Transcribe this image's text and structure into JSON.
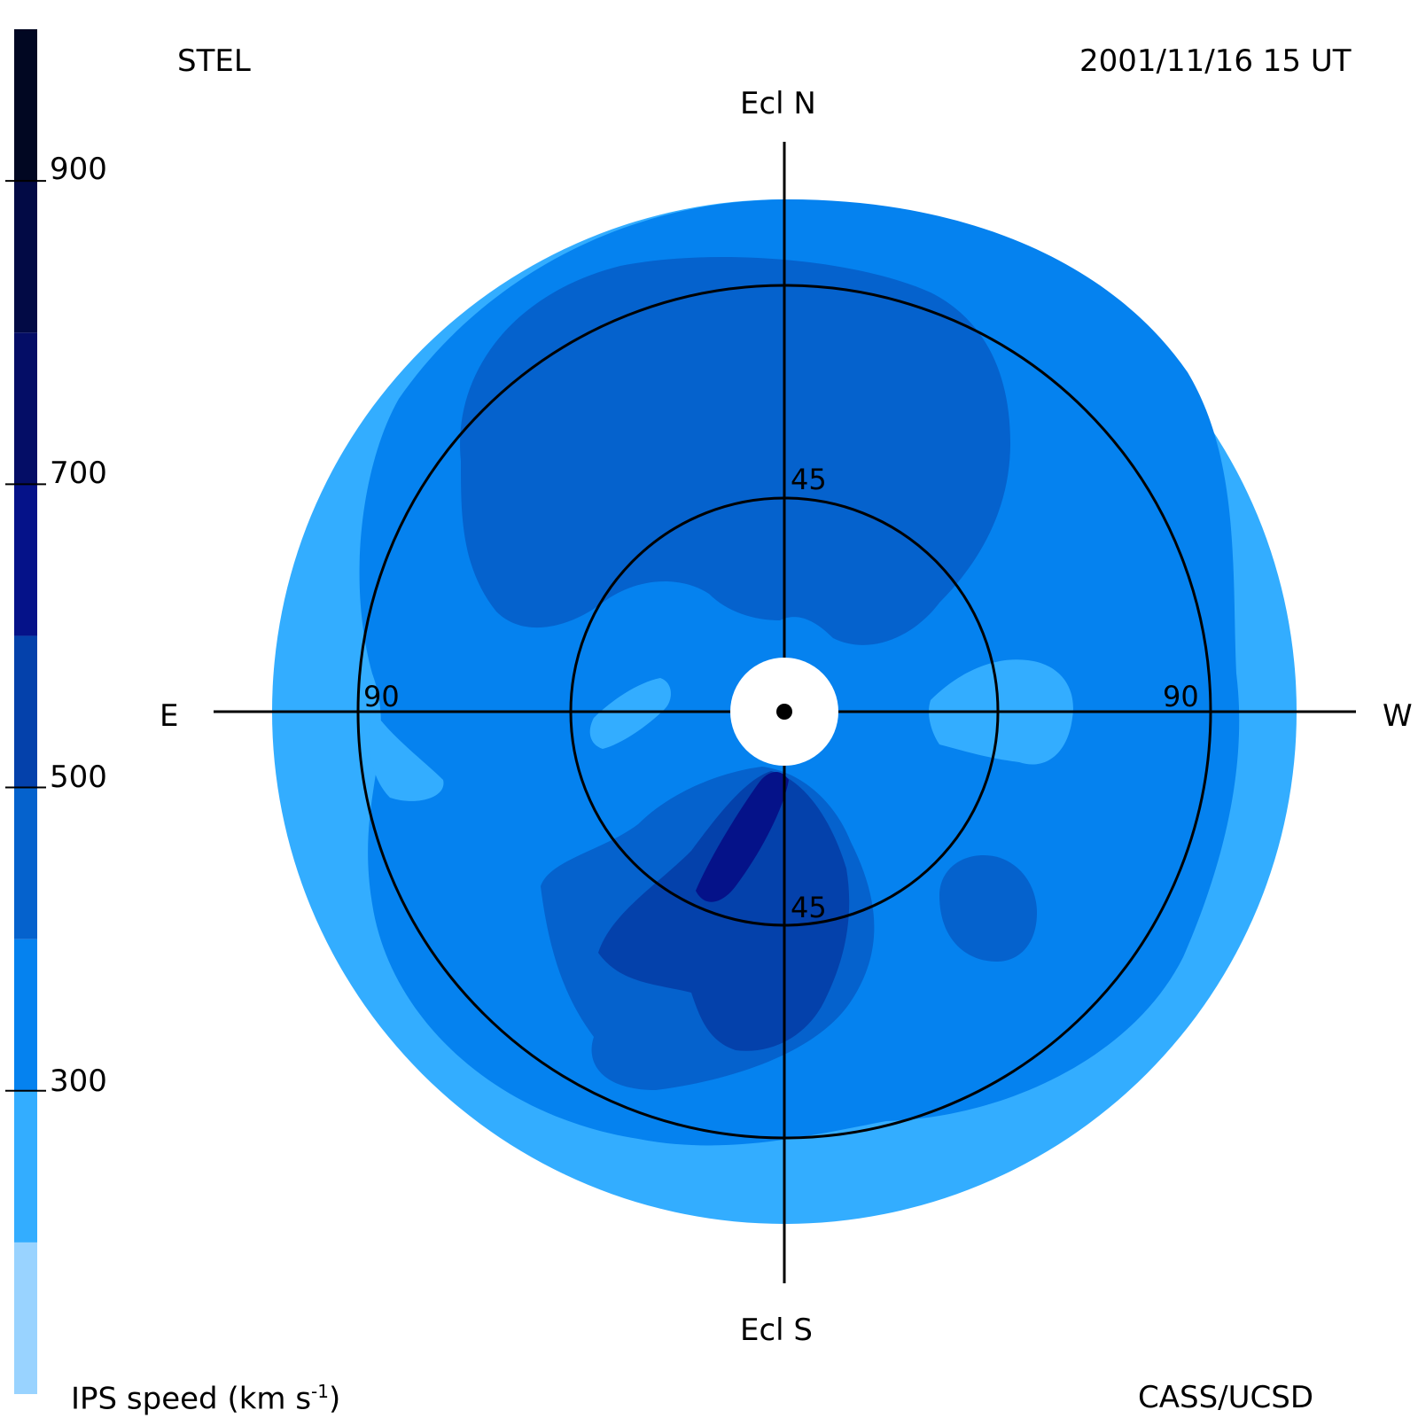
{
  "header": {
    "instrument": "STEL",
    "datetime": "2001/11/16 15 UT"
  },
  "footer": {
    "colorbar_title": "IPS speed (km s",
    "colorbar_title_sup": "-1",
    "colorbar_title_end": ")",
    "credit": "CASS/UCSD"
  },
  "directions": {
    "north": "Ecl N",
    "south": "Ecl S",
    "east": "E",
    "west": "W"
  },
  "rings": {
    "inner_top": "45",
    "inner_bottom": "45",
    "outer_left": "90",
    "outer_right": "90"
  },
  "colorbar": {
    "ticks": [
      "900",
      "700",
      "500",
      "300"
    ],
    "bands": [
      {
        "from": 100,
        "to": 200,
        "color": "#99d3ff"
      },
      {
        "from": 200,
        "to": 300,
        "color": "#33adff"
      },
      {
        "from": 300,
        "to": 400,
        "color": "#0582ef"
      },
      {
        "from": 400,
        "to": 500,
        "color": "#0562cd"
      },
      {
        "from": 500,
        "to": 600,
        "color": "#0441ab"
      },
      {
        "from": 600,
        "to": 700,
        "color": "#051289"
      },
      {
        "from": 700,
        "to": 800,
        "color": "#040d66"
      },
      {
        "from": 800,
        "to": 900,
        "color": "#020a45"
      },
      {
        "from": 900,
        "to": 1000,
        "color": "#010722"
      }
    ]
  },
  "colors": {
    "speed_200_300": "#33adff",
    "speed_300_400": "#0582ef",
    "speed_400_500": "#0562cd",
    "speed_500_600": "#0441ab",
    "speed_600_700": "#051289",
    "sun_occulter": "#ffffff",
    "grid": "#000000"
  }
}
